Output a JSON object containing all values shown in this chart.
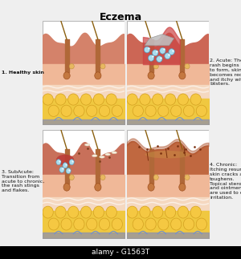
{
  "title": "Eczema",
  "title_fontsize": 9,
  "bg_color": "#efefef",
  "label1": "1. Healthy skin",
  "label2": "2. Acute: The\nrash begins\nto form, skin\nbecomes red\nand itchy with\nblisters.",
  "label3": "3. SubAcute:\nTransition from\nacute to chronic,\nthe rash stings\nand flakes.",
  "label4": "4. Chronic:\nItching resumes,\nskin cracks and\ntoughens.\nTopical steroids\nand ointments\nare used to ease\nirritation.",
  "watermark": "alamy - G1563T",
  "epi_color": "#d4826a",
  "dermis_color": "#f0b898",
  "subdermis_color": "#f5d8c0",
  "fat_bg_color": "#f0c840",
  "fat_glob_color": "#f5c842",
  "fat_edge_color": "#d4a020",
  "vessel_color": "#7090d0",
  "hair_color": "#8B6010",
  "blister_fill": "#aaddee",
  "blister_edge": "#5599bb",
  "red_lesion": "#cc3333",
  "panel_edge": "#aaaaaa",
  "text_color": "#111111",
  "label_fontsize": 4.5,
  "watermark_fontsize": 6.5
}
